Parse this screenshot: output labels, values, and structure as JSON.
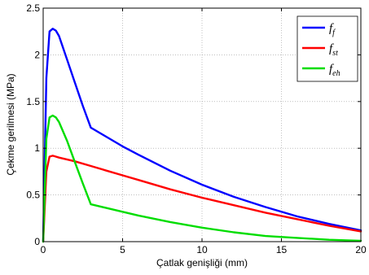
{
  "chart_data": {
    "type": "line",
    "xlabel": "Çatlak genişliği (mm)",
    "ylabel": "Çekme gerilmesi (MPa)",
    "xlim": [
      0,
      20
    ],
    "ylim": [
      0,
      2.5
    ],
    "xticks": [
      0,
      5,
      10,
      15,
      20
    ],
    "yticks": [
      0,
      0.5,
      1,
      1.5,
      2,
      2.5
    ],
    "xtick_labels": [
      "0",
      "5",
      "10",
      "15",
      "20"
    ],
    "ytick_labels": [
      "0",
      "0.5",
      "1",
      "1.5",
      "2",
      "2.5"
    ],
    "grid": true,
    "legend_position": "top-right",
    "series": [
      {
        "name": "f_f",
        "label_main": "f",
        "label_sub": "f",
        "color": "#0000ff",
        "x": [
          0,
          0.2,
          0.4,
          0.6,
          0.8,
          1.0,
          1.5,
          2.0,
          2.5,
          3.0,
          4,
          5,
          6,
          8,
          10,
          12,
          14,
          16,
          18,
          20
        ],
        "y": [
          0,
          1.75,
          2.25,
          2.28,
          2.26,
          2.2,
          1.95,
          1.7,
          1.45,
          1.22,
          1.12,
          1.02,
          0.93,
          0.76,
          0.61,
          0.48,
          0.37,
          0.27,
          0.19,
          0.12
        ]
      },
      {
        "name": "f_st",
        "label_main": "f",
        "label_sub": "st",
        "color": "#ff0000",
        "x": [
          0,
          0.2,
          0.4,
          0.6,
          0.8,
          1.0,
          2,
          3,
          4,
          5,
          6,
          8,
          10,
          12,
          14,
          16,
          18,
          20
        ],
        "y": [
          0,
          0.75,
          0.91,
          0.92,
          0.91,
          0.9,
          0.86,
          0.81,
          0.76,
          0.71,
          0.66,
          0.56,
          0.47,
          0.39,
          0.31,
          0.24,
          0.17,
          0.11
        ]
      },
      {
        "name": "f_eh",
        "label_main": "f",
        "label_sub": "eh",
        "color": "#00dd00",
        "x": [
          0,
          0.2,
          0.4,
          0.6,
          0.8,
          1.0,
          1.5,
          2.0,
          2.5,
          3.0,
          4,
          5,
          6,
          8,
          10,
          12,
          14,
          16,
          18,
          20
        ],
        "y": [
          0,
          1.1,
          1.33,
          1.35,
          1.33,
          1.28,
          1.08,
          0.85,
          0.62,
          0.4,
          0.36,
          0.32,
          0.28,
          0.21,
          0.15,
          0.1,
          0.06,
          0.04,
          0.02,
          0.01
        ]
      }
    ]
  }
}
